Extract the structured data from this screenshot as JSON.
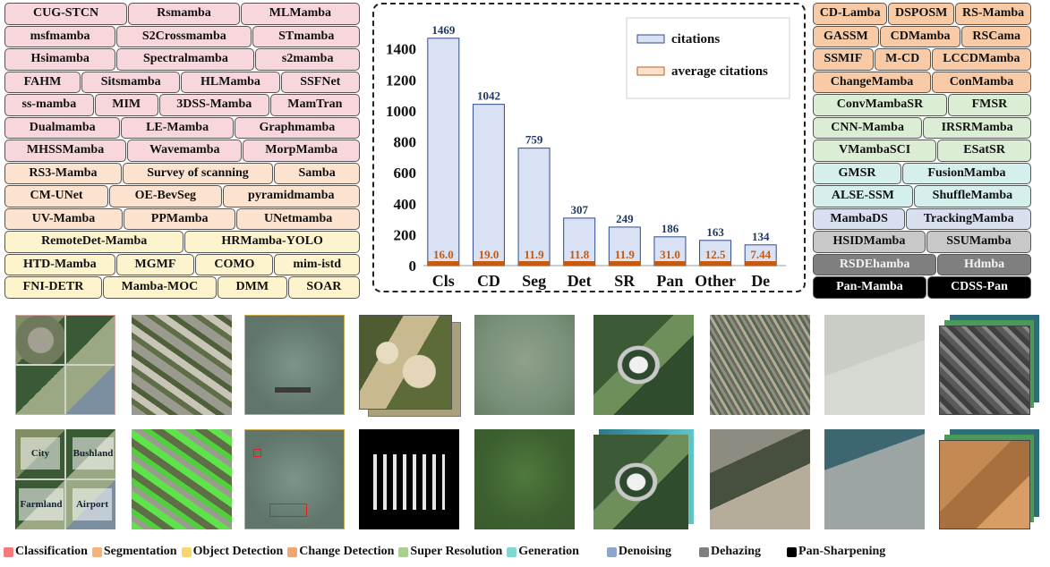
{
  "left_tags": [
    [
      {
        "t": "CUG-STCN",
        "c": "pink"
      },
      {
        "t": "Rsmamba",
        "c": "pink"
      },
      {
        "t": "MLMamba",
        "c": "pink"
      }
    ],
    [
      {
        "t": "msfmamba",
        "c": "pink"
      },
      {
        "t": "S2Crossmamba",
        "c": "pink"
      },
      {
        "t": "STmamba",
        "c": "pink"
      }
    ],
    [
      {
        "t": "Hsimamba",
        "c": "pink"
      },
      {
        "t": "Spectralmamba",
        "c": "pink"
      },
      {
        "t": "s2mamba",
        "c": "pink"
      }
    ],
    [
      {
        "t": "FAHM",
        "c": "pink"
      },
      {
        "t": "Sitsmamba",
        "c": "pink"
      },
      {
        "t": "HLMamba",
        "c": "pink"
      },
      {
        "t": "SSFNet",
        "c": "pink"
      }
    ],
    [
      {
        "t": "ss-mamba",
        "c": "pink"
      },
      {
        "t": "MIM",
        "c": "pink"
      },
      {
        "t": "3DSS-Mamba",
        "c": "pink"
      },
      {
        "t": "MamTran",
        "c": "pink"
      }
    ],
    [
      {
        "t": "Dualmamba",
        "c": "pink"
      },
      {
        "t": "LE-Mamba",
        "c": "pink"
      },
      {
        "t": "Graphmamba",
        "c": "pink"
      }
    ],
    [
      {
        "t": "MHSSMamba",
        "c": "pink"
      },
      {
        "t": "Wavemamba",
        "c": "pink"
      },
      {
        "t": "MorpMamba",
        "c": "pink"
      }
    ],
    [
      {
        "t": "RS3-Mamba",
        "c": "peach"
      },
      {
        "t": "Survey of scanning",
        "c": "peach"
      },
      {
        "t": "Samba",
        "c": "peach"
      }
    ],
    [
      {
        "t": "CM-UNet",
        "c": "peach"
      },
      {
        "t": "OE-BevSeg",
        "c": "peach"
      },
      {
        "t": "pyramidmamba",
        "c": "peach"
      }
    ],
    [
      {
        "t": "UV-Mamba",
        "c": "peach"
      },
      {
        "t": "PPMamba",
        "c": "peach"
      },
      {
        "t": "UNetmamba",
        "c": "peach"
      }
    ],
    [
      {
        "t": "RemoteDet-Mamba",
        "c": "yellow"
      },
      {
        "t": "HRMamba-YOLO",
        "c": "yellow"
      }
    ],
    [
      {
        "t": "HTD-Mamba",
        "c": "yellow"
      },
      {
        "t": "MGMF",
        "c": "yellow"
      },
      {
        "t": "COMO",
        "c": "yellow"
      },
      {
        "t": "mim-istd",
        "c": "yellow"
      }
    ],
    [
      {
        "t": "FNI-DETR",
        "c": "yellow"
      },
      {
        "t": "Mamba-MOC",
        "c": "yellow"
      },
      {
        "t": "DMM",
        "c": "yellow"
      },
      {
        "t": "SOAR",
        "c": "yellow"
      }
    ]
  ],
  "right_tags": [
    [
      {
        "t": "CD-Lamba",
        "c": "orange"
      },
      {
        "t": "DSPOSM",
        "c": "orange"
      },
      {
        "t": "RS-Mamba",
        "c": "orange"
      }
    ],
    [
      {
        "t": "GASSM",
        "c": "orange"
      },
      {
        "t": "CDMamba",
        "c": "orange"
      },
      {
        "t": "RSCama",
        "c": "orange"
      }
    ],
    [
      {
        "t": "SSMIF",
        "c": "orange"
      },
      {
        "t": "M-CD",
        "c": "orange"
      },
      {
        "t": "LCCDMamba",
        "c": "orange"
      }
    ],
    [
      {
        "t": "ChangeMamba",
        "c": "orange"
      },
      {
        "t": "ConMamba",
        "c": "orange"
      }
    ],
    [
      {
        "t": "ConvMambaSR",
        "c": "green"
      },
      {
        "t": "FMSR",
        "c": "green"
      }
    ],
    [
      {
        "t": "CNN-Mamba",
        "c": "green"
      },
      {
        "t": "IRSRMamba",
        "c": "green"
      }
    ],
    [
      {
        "t": "VMambaSCI",
        "c": "green"
      },
      {
        "t": "ESatSR",
        "c": "green"
      }
    ],
    [
      {
        "t": "GMSR",
        "c": "teal"
      },
      {
        "t": "FusionMamba",
        "c": "teal"
      }
    ],
    [
      {
        "t": "ALSE-SSM",
        "c": "teal"
      },
      {
        "t": "ShuffleMamba",
        "c": "teal"
      }
    ],
    [
      {
        "t": "MambaDS",
        "c": "blue"
      },
      {
        "t": "TrackingMamba",
        "c": "blue"
      }
    ],
    [
      {
        "t": "HSIDMamba",
        "c": "gray"
      },
      {
        "t": "SSUMamba",
        "c": "gray"
      }
    ],
    [
      {
        "t": "RSDEhamba",
        "c": "dgray"
      },
      {
        "t": "Hdmba",
        "c": "dgray"
      }
    ],
    [
      {
        "t": "Pan-Mamba",
        "c": "black"
      },
      {
        "t": "CDSS-Pan",
        "c": "black"
      }
    ]
  ],
  "tag_colors": {
    "pink": {
      "bg": "#f8d7dc",
      "fg": "#111111"
    },
    "peach": {
      "bg": "#fbe3cf",
      "fg": "#111111"
    },
    "yellow": {
      "bg": "#fdf3cc",
      "fg": "#111111"
    },
    "orange": {
      "bg": "#f8cba6",
      "fg": "#111111"
    },
    "green": {
      "bg": "#dcedd6",
      "fg": "#111111"
    },
    "teal": {
      "bg": "#d4efec",
      "fg": "#111111"
    },
    "blue": {
      "bg": "#d8e0f0",
      "fg": "#111111"
    },
    "gray": {
      "bg": "#c8c8c8",
      "fg": "#111111"
    },
    "dgray": {
      "bg": "#7f7f7f",
      "fg": "#f2f2f2"
    },
    "black": {
      "bg": "#000000",
      "fg": "#ffffff"
    }
  },
  "chart_data": {
    "type": "bar",
    "categories": [
      "Cls",
      "CD",
      "Seg",
      "Det",
      "SR",
      "Pan",
      "Other",
      "De"
    ],
    "series": [
      {
        "name": "citations",
        "values": [
          1469,
          1042,
          759,
          307,
          249,
          186,
          163,
          134
        ],
        "color": "#d9e2f5",
        "stroke": "#2f4a8a",
        "label_color": "#1f3864",
        "labels": [
          "1469",
          "1042",
          "759",
          "307",
          "249",
          "186",
          "163",
          "134"
        ]
      },
      {
        "name": "average citations",
        "values": [
          16.0,
          19.0,
          11.9,
          11.8,
          11.9,
          31.0,
          12.5,
          7.44
        ],
        "color": "#c55a11",
        "label_color": "#c55a11",
        "labels": [
          "16.0",
          "19.0",
          "11.9",
          "11.8",
          "11.9",
          "31.0",
          "12.5",
          "7.44"
        ]
      }
    ],
    "y_ticks": [
      "0",
      "200",
      "400",
      "600",
      "800",
      "1000",
      "1200",
      "1400"
    ],
    "ylim": [
      0,
      1560
    ],
    "legend_placement": "top-right",
    "grid": false
  },
  "images": {
    "overlay_labels": [
      "City",
      "Bushland",
      "Farmland",
      "Airport"
    ]
  },
  "bottom_legend": [
    {
      "label": "Classification",
      "color": "#f47b7b"
    },
    {
      "label": "Segmentation",
      "color": "#f7b27a"
    },
    {
      "label": "Object Detection",
      "color": "#f9d56e"
    },
    {
      "label": "Change Detection",
      "color": "#f0a673"
    },
    {
      "label": "Super Resolution",
      "color": "#a9d18e"
    },
    {
      "label": "Generation",
      "color": "#7fd8d0"
    },
    {
      "label": "Denoising",
      "color": "#8ea6c9"
    },
    {
      "label": "Dehazing",
      "color": "#808080"
    },
    {
      "label": "Pan-Sharpening",
      "color": "#000000"
    }
  ]
}
